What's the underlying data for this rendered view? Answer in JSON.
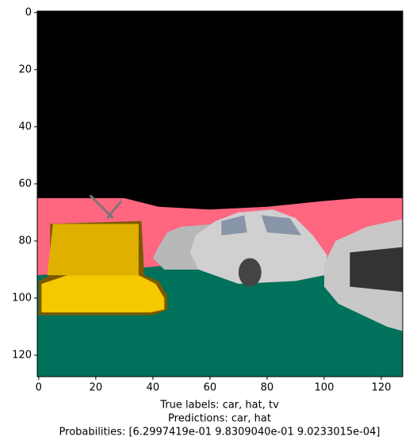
{
  "chart_data": {
    "type": "image",
    "xlim": [
      -0.5,
      127.5
    ],
    "ylim": [
      127.5,
      -0.5
    ],
    "xticks": [
      0,
      20,
      40,
      60,
      80,
      100,
      120
    ],
    "yticks": [
      0,
      20,
      40,
      60,
      80,
      100,
      120
    ],
    "caption": [
      "True labels: car, hat, tv",
      "Predictions: car, hat",
      "Probabilities: [6.2997419e-01 9.8309040e-01 9.0233015e-04]"
    ]
  }
}
